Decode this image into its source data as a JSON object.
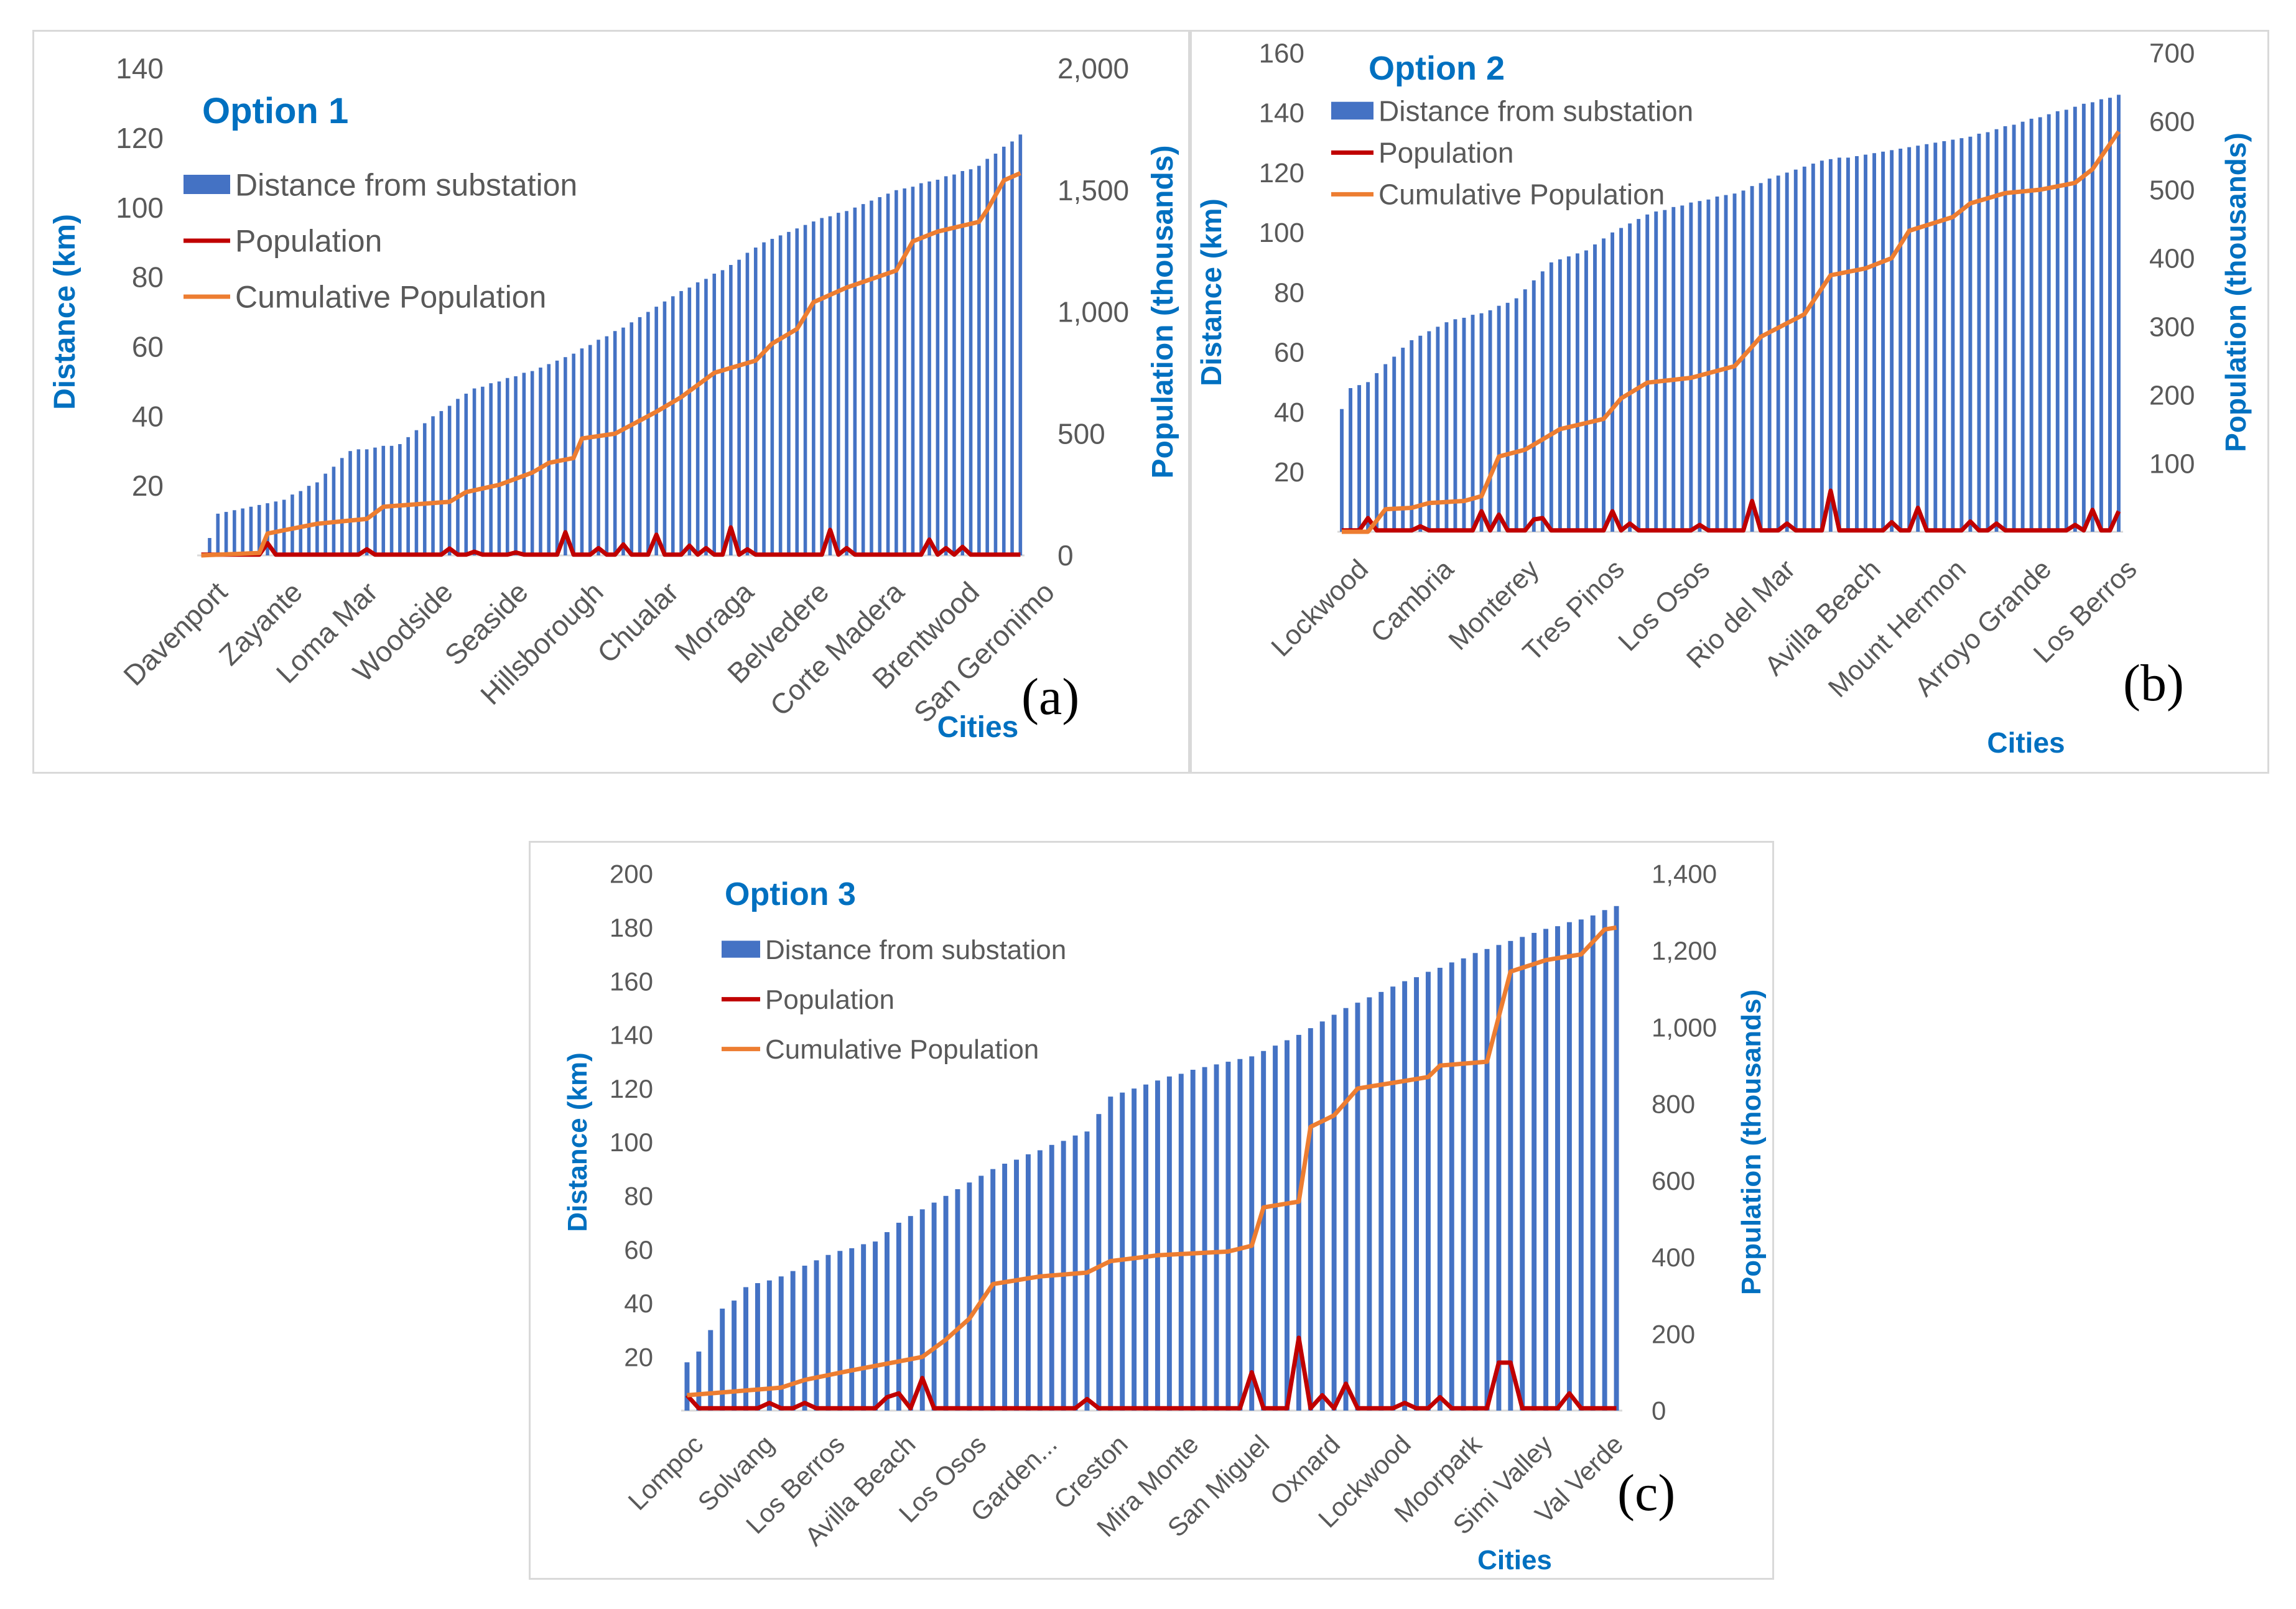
{
  "colors": {
    "bar": "#4472C4",
    "population": "#C00000",
    "cumulative": "#ED7D31",
    "title": "#0070C0",
    "tick": "#595959",
    "axis_title": "#0070C0",
    "frame": "#d9d9d9"
  },
  "legend_labels": {
    "bar": "Distance from substation",
    "population": "Population",
    "cumulative": "Cumulative Population"
  },
  "chart_data": [
    {
      "id": "a",
      "type": "bar",
      "panel_label": "(a)",
      "title": "Option 1",
      "xlabel": "Cities",
      "ylabel": "Distance (km)",
      "y2label": "Population (thousands)",
      "ylim": [
        0,
        140
      ],
      "yticks": [
        20,
        40,
        60,
        80,
        100,
        120,
        140
      ],
      "ytick_labels": [
        "20",
        "40",
        "60",
        "80",
        "100",
        "120",
        "140"
      ],
      "y2lim": [
        0,
        2000
      ],
      "y2ticks": [
        0,
        500,
        1000,
        1500,
        2000
      ],
      "y2tick_labels": [
        "0",
        "500",
        "1,000",
        "1,500",
        "2,000"
      ],
      "n_cities": 100,
      "category_labels": [
        "Davenport",
        "Zayante",
        "Loma Mar",
        "Woodside",
        "Seaside",
        "Hillsborough",
        "Chualar",
        "Moraga",
        "Belvedere",
        "Corte Madera",
        "Brentwood",
        "San Geronimo"
      ],
      "series": [
        {
          "name": "Distance from substation",
          "type": "bar",
          "axis": "left",
          "keypoints": [
            [
              0,
              0
            ],
            [
              1,
              5
            ],
            [
              2,
              12
            ],
            [
              6,
              14
            ],
            [
              10,
              16
            ],
            [
              14,
              21
            ],
            [
              18,
              30
            ],
            [
              24,
              32
            ],
            [
              28,
              40
            ],
            [
              33,
              48
            ],
            [
              40,
              53
            ],
            [
              45,
              58
            ],
            [
              52,
              67
            ],
            [
              58,
              76
            ],
            [
              63,
              82
            ],
            [
              68,
              90
            ],
            [
              74,
              96
            ],
            [
              79,
              100
            ],
            [
              84,
              105
            ],
            [
              89,
              108
            ],
            [
              94,
              112
            ],
            [
              99,
              121
            ]
          ]
        },
        {
          "name": "Population",
          "type": "line",
          "axis": "right",
          "base": 3,
          "spikes": [
            [
              8,
              50
            ],
            [
              20,
              25
            ],
            [
              30,
              28
            ],
            [
              33,
              15
            ],
            [
              38,
              12
            ],
            [
              44,
              95
            ],
            [
              48,
              30
            ],
            [
              51,
              45
            ],
            [
              55,
              85
            ],
            [
              59,
              40
            ],
            [
              61,
              30
            ],
            [
              64,
              115
            ],
            [
              66,
              25
            ],
            [
              76,
              105
            ],
            [
              78,
              30
            ],
            [
              88,
              65
            ],
            [
              90,
              30
            ],
            [
              92,
              35
            ]
          ]
        },
        {
          "name": "Cumulative Population",
          "type": "line",
          "axis": "right",
          "keypoints": [
            [
              0,
              0
            ],
            [
              7,
              10
            ],
            [
              8,
              90
            ],
            [
              14,
              130
            ],
            [
              20,
              150
            ],
            [
              22,
              200
            ],
            [
              30,
              220
            ],
            [
              32,
              260
            ],
            [
              36,
              290
            ],
            [
              40,
              340
            ],
            [
              42,
              380
            ],
            [
              45,
              400
            ],
            [
              46,
              480
            ],
            [
              50,
              500
            ],
            [
              55,
              590
            ],
            [
              58,
              650
            ],
            [
              62,
              750
            ],
            [
              67,
              800
            ],
            [
              69,
              870
            ],
            [
              72,
              930
            ],
            [
              74,
              1040
            ],
            [
              78,
              1100
            ],
            [
              84,
              1170
            ],
            [
              86,
              1290
            ],
            [
              89,
              1330
            ],
            [
              94,
              1370
            ],
            [
              95,
              1420
            ],
            [
              97,
              1540
            ],
            [
              100,
              1585
            ]
          ]
        }
      ]
    },
    {
      "id": "b",
      "type": "bar",
      "panel_label": "(b)",
      "title": "Option 2",
      "xlabel": "Cities",
      "ylabel": "Distance (km)",
      "y2label": "Population (thousands)",
      "ylim": [
        0,
        160
      ],
      "yticks": [
        20,
        40,
        60,
        80,
        100,
        120,
        140,
        160
      ],
      "ytick_labels": [
        "20",
        "40",
        "60",
        "80",
        "100",
        "120",
        "140",
        "160"
      ],
      "y2lim": [
        0,
        700
      ],
      "y2ticks": [
        100,
        200,
        300,
        400,
        500,
        600,
        700
      ],
      "y2tick_labels": [
        "100",
        "200",
        "300",
        "400",
        "500",
        "600",
        "700"
      ],
      "n_cities": 90,
      "category_labels": [
        "Lockwood",
        "Cambria",
        "Monterey",
        "Tres Pinos",
        "Los Osos",
        "Rio del Mar",
        "Avilla Beach",
        "Mount Hermon",
        "Arroyo Grande",
        "Los Berros"
      ],
      "series": [
        {
          "name": "Distance from substation",
          "type": "bar",
          "axis": "left",
          "keypoints": [
            [
              0,
              41
            ],
            [
              1,
              48
            ],
            [
              3,
              50
            ],
            [
              5,
              56
            ],
            [
              8,
              64
            ],
            [
              12,
              70
            ],
            [
              17,
              74
            ],
            [
              20,
              78
            ],
            [
              24,
              90
            ],
            [
              28,
              94
            ],
            [
              31,
              100
            ],
            [
              35,
              106
            ],
            [
              40,
              110
            ],
            [
              45,
              113
            ],
            [
              50,
              119
            ],
            [
              55,
              124
            ],
            [
              60,
              126
            ],
            [
              66,
              129
            ],
            [
              72,
              132
            ],
            [
              78,
              137
            ],
            [
              84,
              142
            ],
            [
              89,
              146
            ]
          ]
        },
        {
          "name": "Population",
          "type": "line",
          "axis": "right",
          "base": 2,
          "spikes": [
            [
              3,
              20
            ],
            [
              9,
              8
            ],
            [
              16,
              30
            ],
            [
              18,
              25
            ],
            [
              22,
              18
            ],
            [
              23,
              20
            ],
            [
              31,
              30
            ],
            [
              33,
              12
            ],
            [
              41,
              10
            ],
            [
              47,
              45
            ],
            [
              51,
              12
            ],
            [
              56,
              60
            ],
            [
              63,
              14
            ],
            [
              66,
              35
            ],
            [
              72,
              15
            ],
            [
              75,
              12
            ],
            [
              84,
              10
            ],
            [
              86,
              32
            ],
            [
              89,
              30
            ]
          ]
        },
        {
          "name": "Cumulative Population",
          "type": "line",
          "axis": "right",
          "keypoints": [
            [
              0,
              0
            ],
            [
              3,
              0
            ],
            [
              5,
              33
            ],
            [
              8,
              35
            ],
            [
              10,
              42
            ],
            [
              14,
              45
            ],
            [
              16,
              52
            ],
            [
              18,
              110
            ],
            [
              21,
              120
            ],
            [
              23,
              135
            ],
            [
              25,
              150
            ],
            [
              30,
              165
            ],
            [
              32,
              195
            ],
            [
              35,
              218
            ],
            [
              40,
              225
            ],
            [
              45,
              242
            ],
            [
              48,
              285
            ],
            [
              53,
              318
            ],
            [
              56,
              375
            ],
            [
              60,
              385
            ],
            [
              63,
              400
            ],
            [
              65,
              440
            ],
            [
              70,
              460
            ],
            [
              72,
              480
            ],
            [
              76,
              495
            ],
            [
              80,
              500
            ],
            [
              84,
              510
            ],
            [
              86,
              530
            ],
            [
              89,
              585
            ]
          ]
        }
      ]
    },
    {
      "id": "c",
      "type": "bar",
      "panel_label": "(c)",
      "title": "Option 3",
      "xlabel": "Cities",
      "ylabel": "Distance (km)",
      "y2label": "Population (thousands)",
      "ylim": [
        0,
        200
      ],
      "yticks": [
        20,
        40,
        60,
        80,
        100,
        120,
        140,
        160,
        180,
        200
      ],
      "ytick_labels": [
        "20",
        "40",
        "60",
        "80",
        "100",
        "120",
        "140",
        "160",
        "180",
        "200"
      ],
      "y2lim": [
        0,
        1400
      ],
      "y2ticks": [
        0,
        200,
        400,
        600,
        800,
        1000,
        1200,
        1400
      ],
      "y2tick_labels": [
        "0",
        "200",
        "400",
        "600",
        "800",
        "1,000",
        "1,200",
        "1,400"
      ],
      "n_cities": 80,
      "category_labels": [
        "Lompoc",
        "Solvang",
        "Los Berros",
        "Avilla Beach",
        "Los Osos",
        "Garden...",
        "Creston",
        "Mira Monte",
        "San Miguel",
        "Oxnard",
        "Lockwood",
        "Moorpark",
        "Simi Valley",
        "Val Verde"
      ],
      "series": [
        {
          "name": "Distance from substation",
          "type": "bar",
          "axis": "left",
          "keypoints": [
            [
              0,
              18
            ],
            [
              1,
              22
            ],
            [
              2,
              30
            ],
            [
              3,
              38
            ],
            [
              4,
              41
            ],
            [
              5,
              46
            ],
            [
              8,
              50
            ],
            [
              12,
              58
            ],
            [
              16,
              63
            ],
            [
              18,
              70
            ],
            [
              22,
              80
            ],
            [
              26,
              90
            ],
            [
              30,
              97
            ],
            [
              34,
              104
            ],
            [
              36,
              117
            ],
            [
              40,
              123
            ],
            [
              44,
              128
            ],
            [
              48,
              132
            ],
            [
              52,
              140
            ],
            [
              56,
              150
            ],
            [
              60,
              158
            ],
            [
              64,
              165
            ],
            [
              68,
              172
            ],
            [
              72,
              178
            ],
            [
              76,
              183
            ],
            [
              79,
              188
            ]
          ]
        },
        {
          "name": "Population",
          "type": "line",
          "axis": "right",
          "base": 6,
          "spikes": [
            [
              0,
              40
            ],
            [
              7,
              20
            ],
            [
              10,
              20
            ],
            [
              17,
              35
            ],
            [
              18,
              45
            ],
            [
              20,
              85
            ],
            [
              34,
              30
            ],
            [
              48,
              100
            ],
            [
              52,
              190
            ],
            [
              54,
              40
            ],
            [
              56,
              70
            ],
            [
              61,
              20
            ],
            [
              64,
              35
            ],
            [
              69,
              125
            ],
            [
              70,
              125
            ],
            [
              75,
              45
            ]
          ]
        },
        {
          "name": "Cumulative Population",
          "type": "line",
          "axis": "right",
          "keypoints": [
            [
              0,
              40
            ],
            [
              4,
              50
            ],
            [
              8,
              60
            ],
            [
              10,
              80
            ],
            [
              14,
              105
            ],
            [
              20,
              140
            ],
            [
              22,
              185
            ],
            [
              24,
              240
            ],
            [
              26,
              330
            ],
            [
              30,
              350
            ],
            [
              34,
              360
            ],
            [
              36,
              390
            ],
            [
              40,
              405
            ],
            [
              46,
              415
            ],
            [
              48,
              430
            ],
            [
              49,
              530
            ],
            [
              52,
              545
            ],
            [
              53,
              740
            ],
            [
              55,
              770
            ],
            [
              57,
              840
            ],
            [
              60,
              855
            ],
            [
              63,
              870
            ],
            [
              64,
              900
            ],
            [
              68,
              910
            ],
            [
              70,
              1145
            ],
            [
              73,
              1175
            ],
            [
              76,
              1190
            ],
            [
              78,
              1255
            ],
            [
              79,
              1260
            ]
          ]
        }
      ]
    }
  ]
}
